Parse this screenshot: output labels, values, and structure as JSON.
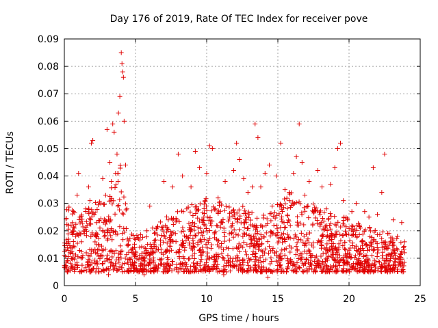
{
  "chart_data": {
    "type": "scatter",
    "title": "Day 176 of 2019, Rate Of TEC Index for receiver pove",
    "xlabel": "GPS time / hours",
    "ylabel": "ROTI / TECUs",
    "xlim": [
      0,
      25
    ],
    "ylim": [
      0,
      0.09
    ],
    "xticks": [
      "0",
      "5",
      "10",
      "15",
      "20",
      "25"
    ],
    "yticks": [
      "0",
      "0.01",
      "0.02",
      "0.03",
      "0.04",
      "0.05",
      "0.06",
      "0.07",
      "0.08",
      "0.09"
    ],
    "grid": true,
    "marker": "+",
    "series_color": "#e00000",
    "envelope_note": "",
    "points": [
      [
        0.0,
        0.011
      ],
      [
        0.1,
        0.013
      ],
      [
        0.2,
        0.009
      ],
      [
        0.3,
        0.016
      ],
      [
        0.4,
        0.012
      ],
      [
        0.5,
        0.007
      ],
      [
        0.6,
        0.014
      ],
      [
        0.7,
        0.021
      ],
      [
        0.8,
        0.018
      ],
      [
        0.9,
        0.033
      ],
      [
        1.0,
        0.041
      ],
      [
        1.1,
        0.025
      ],
      [
        1.2,
        0.016
      ],
      [
        1.3,
        0.011
      ],
      [
        1.4,
        0.019
      ],
      [
        1.5,
        0.028
      ],
      [
        1.6,
        0.022
      ],
      [
        1.7,
        0.036
      ],
      [
        1.8,
        0.031
      ],
      [
        1.9,
        0.052
      ],
      [
        2.0,
        0.053
      ],
      [
        2.1,
        0.026
      ],
      [
        2.2,
        0.012
      ],
      [
        2.3,
        0.008
      ],
      [
        2.4,
        0.015
      ],
      [
        2.5,
        0.021
      ],
      [
        2.6,
        0.011
      ],
      [
        2.7,
        0.039
      ],
      [
        2.8,
        0.018
      ],
      [
        2.9,
        0.033
      ],
      [
        3.0,
        0.057
      ],
      [
        3.1,
        0.024
      ],
      [
        3.2,
        0.045
      ],
      [
        3.3,
        0.038
      ],
      [
        3.4,
        0.059
      ],
      [
        3.5,
        0.056
      ],
      [
        3.6,
        0.041
      ],
      [
        3.7,
        0.048
      ],
      [
        3.8,
        0.063
      ],
      [
        3.9,
        0.069
      ],
      [
        4.0,
        0.085
      ],
      [
        4.05,
        0.081
      ],
      [
        4.1,
        0.078
      ],
      [
        4.15,
        0.076
      ],
      [
        4.2,
        0.06
      ],
      [
        4.3,
        0.044
      ],
      [
        4.4,
        0.028
      ],
      [
        4.5,
        0.015
      ],
      [
        4.7,
        0.013
      ],
      [
        5.0,
        0.012
      ],
      [
        5.3,
        0.011
      ],
      [
        5.6,
        0.014
      ],
      [
        5.8,
        0.02
      ],
      [
        6.0,
        0.029
      ],
      [
        6.2,
        0.021
      ],
      [
        6.5,
        0.013
      ],
      [
        6.8,
        0.012
      ],
      [
        7.0,
        0.038
      ],
      [
        7.3,
        0.024
      ],
      [
        7.6,
        0.036
      ],
      [
        7.8,
        0.019
      ],
      [
        8.0,
        0.048
      ],
      [
        8.3,
        0.04
      ],
      [
        8.6,
        0.028
      ],
      [
        8.9,
        0.036
      ],
      [
        9.2,
        0.049
      ],
      [
        9.5,
        0.043
      ],
      [
        9.8,
        0.025
      ],
      [
        10.0,
        0.041
      ],
      [
        10.2,
        0.051
      ],
      [
        10.4,
        0.05
      ],
      [
        10.6,
        0.028
      ],
      [
        10.8,
        0.032
      ],
      [
        11.0,
        0.023
      ],
      [
        11.3,
        0.038
      ],
      [
        11.6,
        0.025
      ],
      [
        11.9,
        0.042
      ],
      [
        12.1,
        0.052
      ],
      [
        12.3,
        0.046
      ],
      [
        12.6,
        0.039
      ],
      [
        12.9,
        0.034
      ],
      [
        13.2,
        0.036
      ],
      [
        13.4,
        0.059
      ],
      [
        13.6,
        0.054
      ],
      [
        13.8,
        0.036
      ],
      [
        14.1,
        0.041
      ],
      [
        14.4,
        0.044
      ],
      [
        14.6,
        0.029
      ],
      [
        14.9,
        0.04
      ],
      [
        15.2,
        0.052
      ],
      [
        15.5,
        0.035
      ],
      [
        15.8,
        0.034
      ],
      [
        16.1,
        0.041
      ],
      [
        16.3,
        0.047
      ],
      [
        16.5,
        0.059
      ],
      [
        16.7,
        0.045
      ],
      [
        16.9,
        0.033
      ],
      [
        17.2,
        0.038
      ],
      [
        17.5,
        0.027
      ],
      [
        17.8,
        0.042
      ],
      [
        18.1,
        0.036
      ],
      [
        18.4,
        0.028
      ],
      [
        18.7,
        0.037
      ],
      [
        19.0,
        0.043
      ],
      [
        19.2,
        0.05
      ],
      [
        19.4,
        0.052
      ],
      [
        19.6,
        0.031
      ],
      [
        19.9,
        0.024
      ],
      [
        20.2,
        0.027
      ],
      [
        20.5,
        0.03
      ],
      [
        20.8,
        0.021
      ],
      [
        21.1,
        0.027
      ],
      [
        21.4,
        0.025
      ],
      [
        21.7,
        0.043
      ],
      [
        22.0,
        0.026
      ],
      [
        22.3,
        0.034
      ],
      [
        22.5,
        0.048
      ],
      [
        22.8,
        0.019
      ],
      [
        23.1,
        0.024
      ],
      [
        23.4,
        0.018
      ],
      [
        23.7,
        0.023
      ],
      [
        23.9,
        0.012
      ],
      [
        0.3,
        0.006
      ],
      [
        1.2,
        0.005
      ],
      [
        2.4,
        0.005
      ],
      [
        3.1,
        0.004
      ],
      [
        5.6,
        0.004
      ],
      [
        7.0,
        0.005
      ],
      [
        9.2,
        0.006
      ],
      [
        11.2,
        0.004
      ],
      [
        12.9,
        0.005
      ],
      [
        14.3,
        0.003
      ],
      [
        15.6,
        0.005
      ],
      [
        17.2,
        0.006
      ],
      [
        19.8,
        0.005
      ],
      [
        21.5,
        0.005
      ],
      [
        23.2,
        0.006
      ]
    ]
  }
}
